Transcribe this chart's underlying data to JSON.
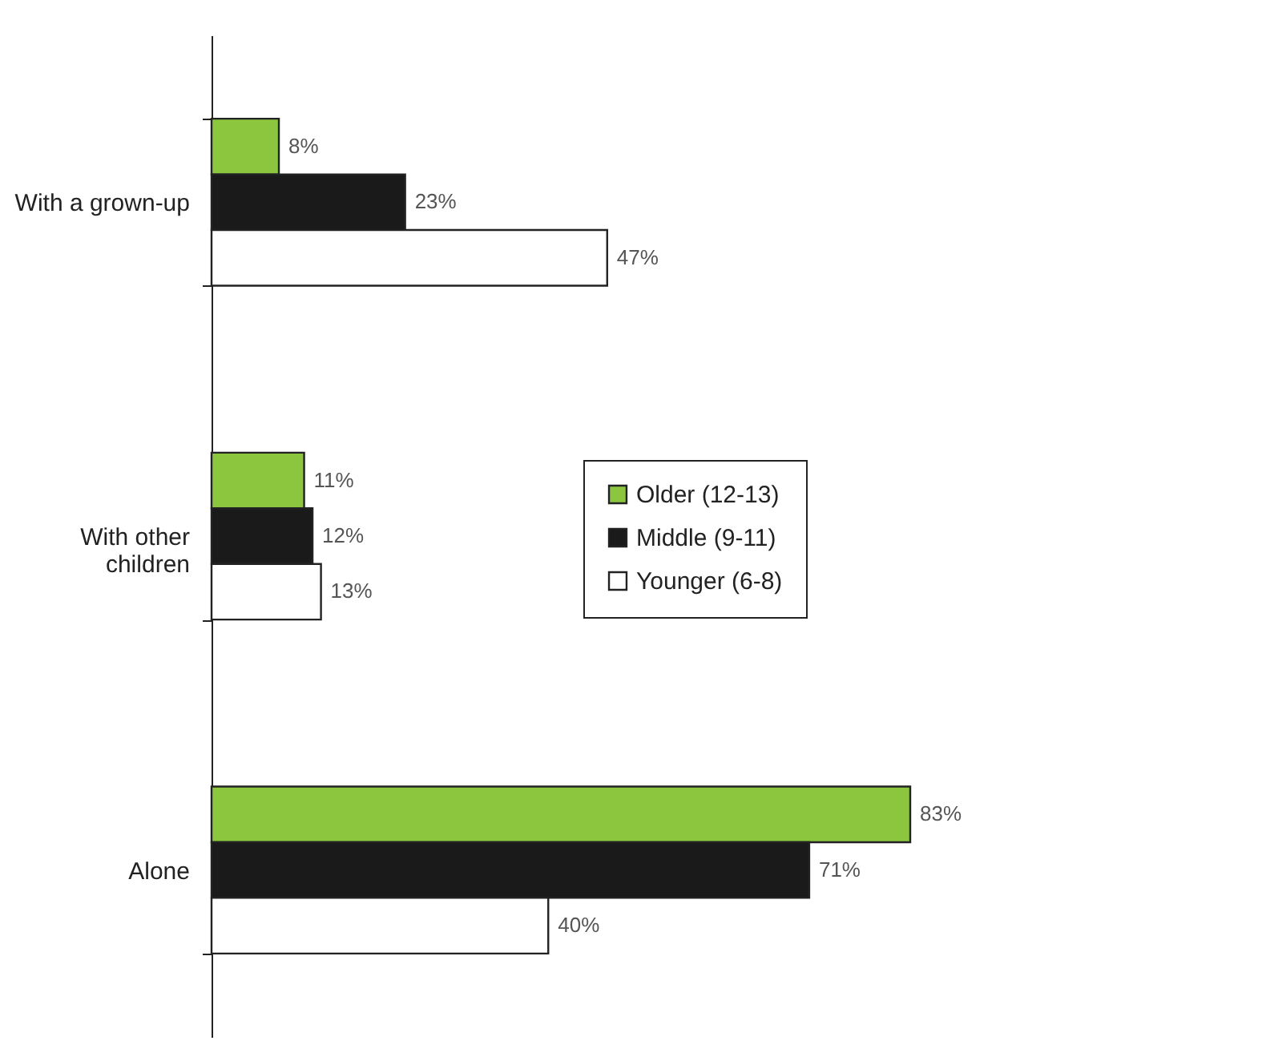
{
  "chart_data": {
    "type": "bar",
    "orientation": "horizontal",
    "categories": [
      "With a grown-up",
      "With other children",
      "Alone"
    ],
    "series": [
      {
        "name": "Older (12-13)",
        "color": "#8cc63f",
        "values": [
          8,
          11,
          83
        ],
        "value_labels": [
          "8%",
          "11%",
          "83%"
        ]
      },
      {
        "name": "Middle (9-11)",
        "color": "#1a1a1a",
        "values": [
          23,
          12,
          71
        ],
        "value_labels": [
          "23%",
          "12%",
          "71%"
        ]
      },
      {
        "name": "Younger (6-8)",
        "color": "#ffffff",
        "values": [
          47,
          13,
          40
        ],
        "value_labels": [
          "47%",
          "13%",
          "40%"
        ]
      }
    ],
    "legend": "right",
    "grid": false
  }
}
